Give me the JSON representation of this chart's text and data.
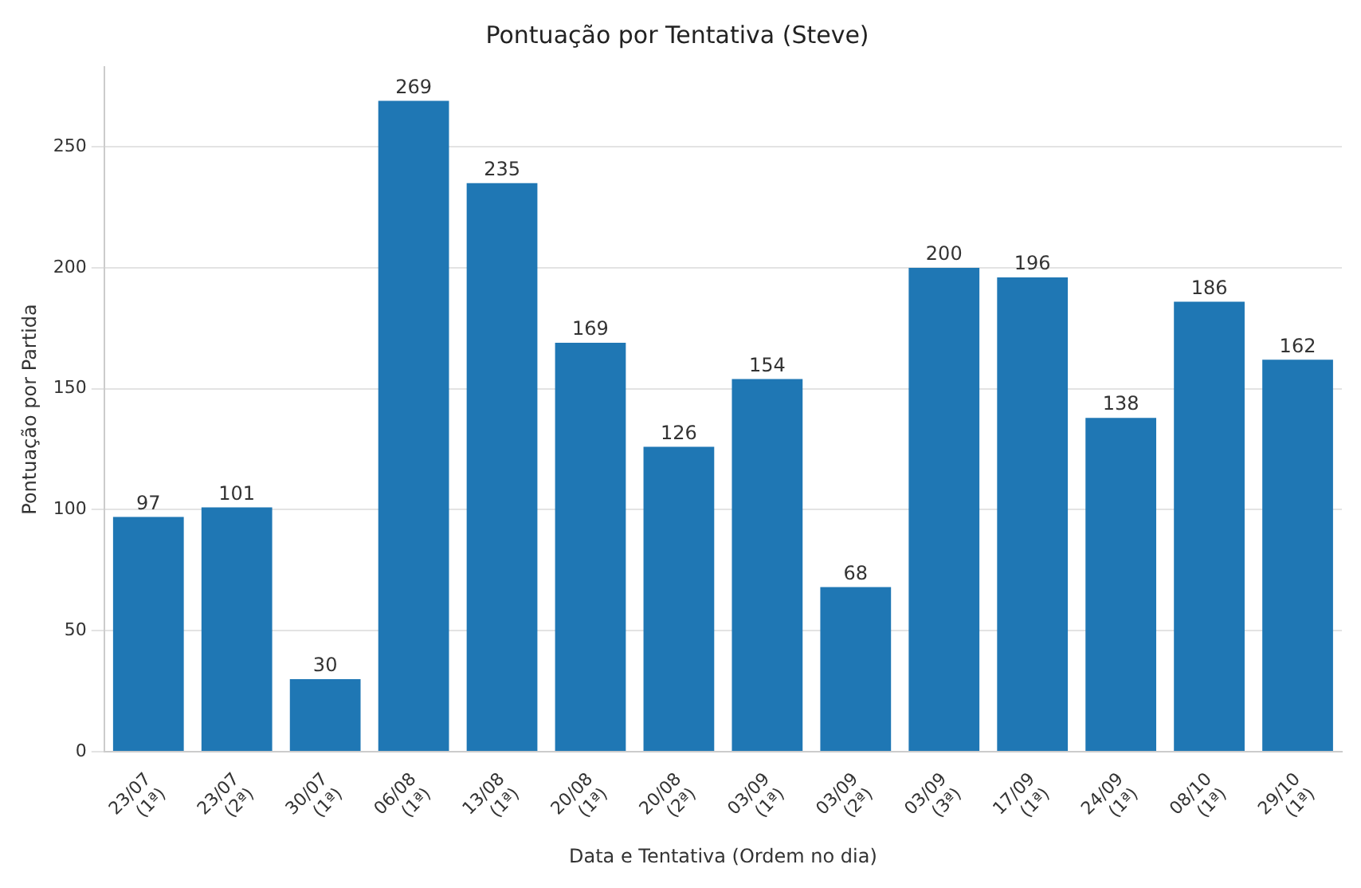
{
  "chart_data": {
    "type": "bar",
    "title": "Pontuação por Tentativa (Steve)",
    "xlabel": "Data e Tentativa (Ordem no dia)",
    "ylabel": "Pontuação por Partida",
    "categories": [
      "23/07\n(1ª)",
      "23/07\n(2ª)",
      "30/07\n(1ª)",
      "06/08\n(1ª)",
      "13/08\n(1ª)",
      "20/08\n(1ª)",
      "20/08\n(2ª)",
      "03/09\n(1ª)",
      "03/09\n(2ª)",
      "03/09\n(3ª)",
      "17/09\n(1ª)",
      "24/09\n(1ª)",
      "08/10\n(1ª)",
      "29/10\n(1ª)"
    ],
    "values": [
      97,
      101,
      30,
      269,
      235,
      169,
      126,
      154,
      68,
      200,
      196,
      138,
      186,
      162
    ],
    "color": "#1f77b4",
    "ylim": [
      0,
      283
    ],
    "yticks": [
      0,
      50,
      100,
      150,
      200,
      250
    ],
    "grid": "y",
    "data_labels": true
  }
}
